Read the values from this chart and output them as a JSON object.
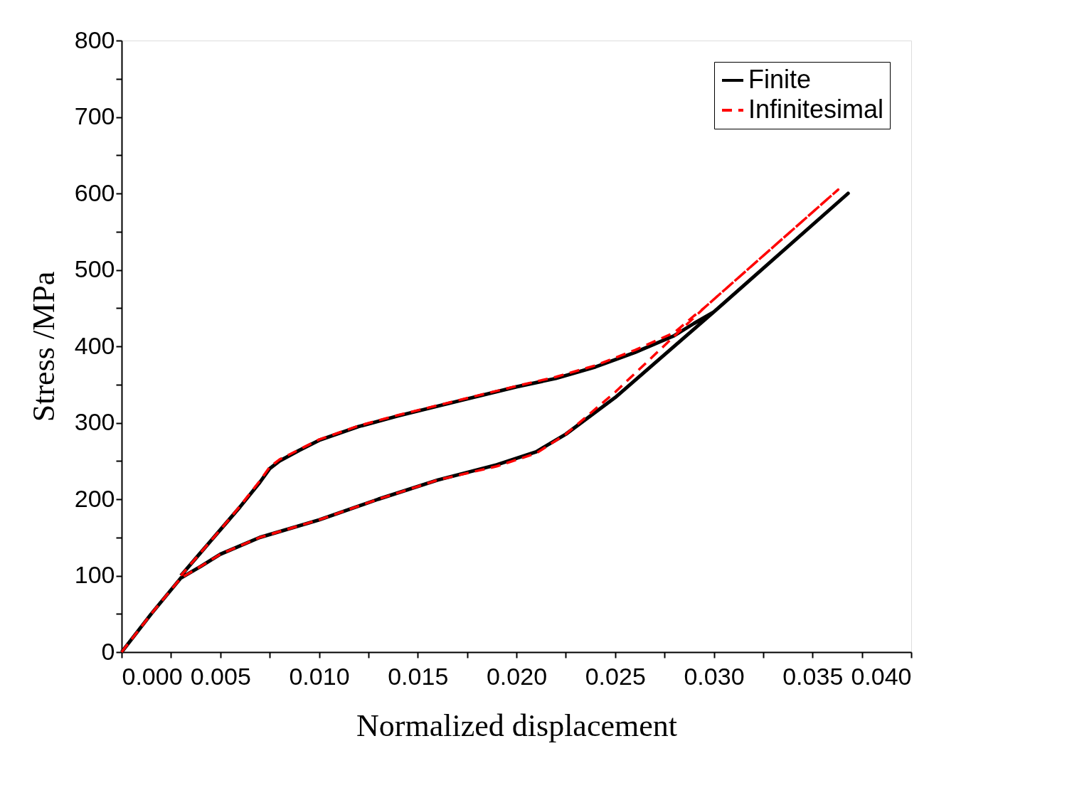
{
  "chart_data": {
    "type": "line",
    "xlabel": "Normalized displacement",
    "ylabel": "Stress /MPa",
    "xlim": [
      0,
      0.04
    ],
    "ylim": [
      0,
      800
    ],
    "xticks": [
      {
        "value": 0,
        "label": "0.000"
      },
      {
        "value": 0.0025,
        "label": null
      },
      {
        "value": 0.005,
        "label": "0.005"
      },
      {
        "value": 0.0075,
        "label": null
      },
      {
        "value": 0.01,
        "label": "0.010"
      },
      {
        "value": 0.0125,
        "label": null
      },
      {
        "value": 0.015,
        "label": "0.015"
      },
      {
        "value": 0.0175,
        "label": null
      },
      {
        "value": 0.02,
        "label": "0.020"
      },
      {
        "value": 0.0225,
        "label": null
      },
      {
        "value": 0.025,
        "label": "0.025"
      },
      {
        "value": 0.0275,
        "label": null
      },
      {
        "value": 0.03,
        "label": "0.030"
      },
      {
        "value": 0.0325,
        "label": null
      },
      {
        "value": 0.035,
        "label": "0.035"
      },
      {
        "value": 0.0375,
        "label": null
      },
      {
        "value": 0.04,
        "label": "0.040"
      }
    ],
    "yticks": [
      0,
      {
        "value": 50,
        "label": null
      },
      100,
      {
        "value": 150,
        "label": null
      },
      200,
      {
        "value": 250,
        "label": null
      },
      300,
      {
        "value": 350,
        "label": null
      },
      400,
      {
        "value": 450,
        "label": null
      },
      500,
      {
        "value": 550,
        "label": null
      },
      600,
      {
        "value": 650,
        "label": null
      },
      700,
      {
        "value": 750,
        "label": null
      },
      800
    ],
    "grid": false,
    "legend": "top right",
    "marker": "none",
    "series": [
      {
        "name": "Finite",
        "color": "#000000",
        "line_style": "solid",
        "x": [
          0,
          0.0015,
          0.003,
          0.004,
          0.005,
          0.007,
          0.01,
          0.013,
          0.016,
          0.019,
          0.021,
          0.0225,
          0.025,
          0.03,
          0.0368,
          0.03,
          0.029,
          0.028,
          0.026,
          0.024,
          0.022,
          0.02,
          0.017,
          0.014,
          0.012,
          0.01,
          0.009,
          0.008,
          0.0075,
          0.007,
          0.006,
          0.005,
          0.004,
          0.003
        ],
        "values": [
          0,
          50,
          97,
          112,
          128,
          150,
          173,
          200,
          225,
          245,
          262,
          285,
          333,
          445,
          600,
          445,
          430,
          414,
          392,
          373,
          358,
          347,
          328,
          309,
          295,
          277,
          264,
          250,
          240,
          222,
          190,
          160,
          130,
          100
        ]
      },
      {
        "name": "Infinitesimal",
        "color": "#ff0000",
        "line_style": "dashed",
        "x": [
          0,
          0.0015,
          0.003,
          0.004,
          0.005,
          0.007,
          0.01,
          0.013,
          0.016,
          0.019,
          0.021,
          0.0225,
          0.025,
          0.0295,
          0.0363,
          0.0295,
          0.029,
          0.028,
          0.026,
          0.024,
          0.022,
          0.02,
          0.017,
          0.014,
          0.012,
          0.01,
          0.009,
          0.008,
          0.0075,
          0.007,
          0.006,
          0.005,
          0.004,
          0.003
        ],
        "values": [
          0,
          50,
          97,
          112,
          128,
          150,
          173,
          200,
          225,
          243,
          260,
          285,
          340,
          450,
          605,
          450,
          440,
          418,
          395,
          375,
          360,
          348,
          329,
          310,
          296,
          278,
          265,
          252,
          242,
          224,
          191,
          160,
          130,
          100
        ]
      }
    ]
  }
}
